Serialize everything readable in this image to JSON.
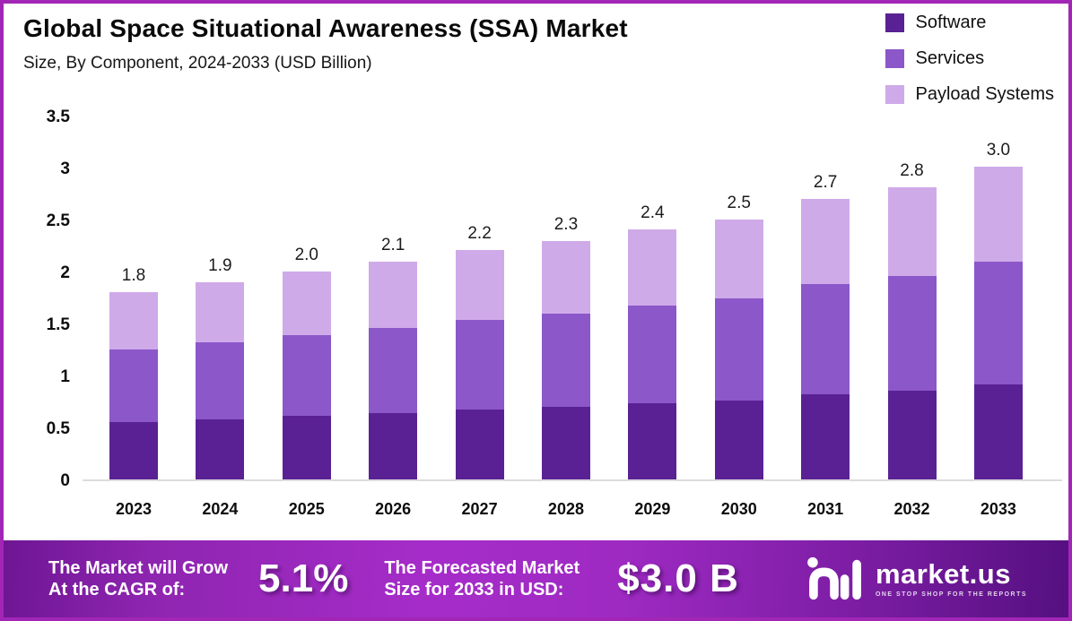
{
  "header": {
    "title": "Global Space Situational Awareness (SSA) Market",
    "subtitle": "Size, By Component, 2024-2033 (USD Billion)"
  },
  "chart_data": {
    "type": "bar",
    "stacked": true,
    "title": "Global Space Situational Awareness (SSA) Market Size, By Component, 2024-2033 (USD Billion)",
    "unit": "USD Billion",
    "categories": [
      "2023",
      "2024",
      "2025",
      "2026",
      "2027",
      "2028",
      "2029",
      "2030",
      "2031",
      "2032",
      "2033"
    ],
    "series": [
      {
        "name": "Software",
        "color": "#5a2194",
        "values": [
          0.55,
          0.58,
          0.61,
          0.64,
          0.67,
          0.7,
          0.73,
          0.76,
          0.82,
          0.85,
          0.91
        ]
      },
      {
        "name": "Services",
        "color": "#8b57c9",
        "values": [
          0.7,
          0.74,
          0.78,
          0.82,
          0.86,
          0.9,
          0.94,
          0.98,
          1.06,
          1.1,
          1.18
        ]
      },
      {
        "name": "Payload Systems",
        "color": "#cfaae9",
        "values": [
          0.55,
          0.58,
          0.61,
          0.64,
          0.67,
          0.7,
          0.73,
          0.76,
          0.82,
          0.85,
          0.91
        ]
      }
    ],
    "totals_labels": [
      "1.8",
      "1.9",
      "2.0",
      "2.1",
      "2.2",
      "2.3",
      "2.4",
      "2.5",
      "2.7",
      "2.8",
      "3.0"
    ],
    "ylim": [
      0,
      3.5
    ],
    "y_ticks": [
      {
        "label": "3.5",
        "value": 3.5
      },
      {
        "label": "3",
        "value": 3
      },
      {
        "label": "2.5",
        "value": 2.5
      },
      {
        "label": "2",
        "value": 2
      },
      {
        "label": "1.5",
        "value": 1.5
      },
      {
        "label": "1",
        "value": 1
      },
      {
        "label": "0.5",
        "value": 0.5
      },
      {
        "label": "0",
        "value": 0
      }
    ],
    "grid": false,
    "legend_position": "top-right"
  },
  "banner": {
    "cagr_label_line1": "The Market will Grow",
    "cagr_label_line2": "At the CAGR of:",
    "cagr_value": "5.1%",
    "forecast_label_line1": "The Forecasted Market",
    "forecast_label_line2": "Size for 2033 in USD:",
    "forecast_value": "$3.0 B",
    "logo_text": "market.us",
    "logo_tagline": "ONE STOP SHOP FOR THE REPORTS"
  },
  "colors": {
    "frame_border": "#a226b5",
    "axis_line": "#dcdcdc",
    "banner_gradient_left": "#6e1694",
    "banner_gradient_mid": "#a62cc9",
    "banner_gradient_right": "#551080"
  }
}
